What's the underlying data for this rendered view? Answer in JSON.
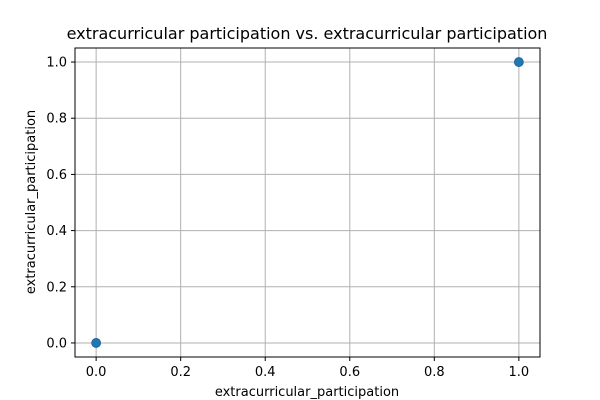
{
  "chart_data": {
    "type": "scatter",
    "title": "extracurricular participation vs. extracurricular participation",
    "xlabel": "extracurricular_participation",
    "ylabel": "extracurricular_participation",
    "xlim": [
      -0.05,
      1.05
    ],
    "ylim": [
      -0.05,
      1.05
    ],
    "xticks": [
      "0.0",
      "0.2",
      "0.4",
      "0.6",
      "0.8",
      "1.0"
    ],
    "yticks": [
      "0.0",
      "0.2",
      "0.4",
      "0.6",
      "0.8",
      "1.0"
    ],
    "grid": true,
    "marker_color": "#1f77b4",
    "points": [
      {
        "x": 0,
        "y": 0
      },
      {
        "x": 1,
        "y": 1
      }
    ]
  }
}
